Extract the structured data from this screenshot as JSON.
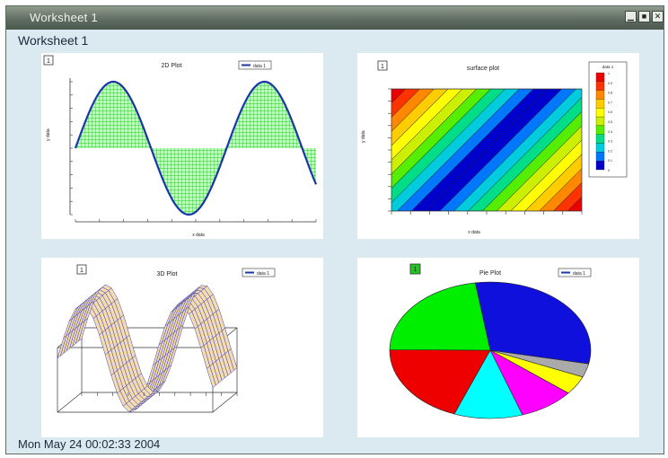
{
  "window": {
    "title": "Worksheet 1",
    "controls": {
      "minimize_icon": "minimize-icon",
      "maximize_icon": "maximize-icon",
      "close_icon": "close-icon"
    }
  },
  "worksheet": {
    "heading": "Worksheet 1",
    "timestamp": "Mon May 24 00:02:33 2004"
  },
  "charts": [
    {
      "index_label": "1",
      "title": "2D Plot",
      "legend": "data 1",
      "ylabel": "y data",
      "xlabel": "x data"
    },
    {
      "index_label": "1",
      "title": "surface plot",
      "legend_title": "data 1",
      "ylabel": "y data",
      "xlabel": "x data"
    },
    {
      "index_label": "1",
      "title": "3D Plot",
      "legend": "data 1"
    },
    {
      "index_label": "1",
      "title": "Pie Plot",
      "legend": "data 1"
    }
  ],
  "chart_data": [
    {
      "type": "line",
      "title": "2D Plot",
      "legend": [
        "data 1"
      ],
      "description_fill": "hatched green fill between curve and baseline 0.5",
      "series": [
        {
          "name": "data 1",
          "function": "0.5+0.5*sin(x)",
          "x": [
            0,
            0.5,
            1,
            1.5,
            2,
            2.5,
            3,
            3.5,
            4,
            4.5,
            5,
            5.5,
            6,
            6.5,
            7,
            7.5,
            8,
            8.5,
            9,
            9.5,
            10
          ],
          "values": [
            0.5,
            0.74,
            0.92,
            1.0,
            0.95,
            0.8,
            0.57,
            0.32,
            0.12,
            0.01,
            0.02,
            0.14,
            0.36,
            0.61,
            0.83,
            0.97,
            0.99,
            0.9,
            0.71,
            0.47,
            0.23
          ]
        }
      ],
      "xlim": [
        0,
        10
      ],
      "ylim": [
        0,
        1
      ],
      "grid": false
    },
    {
      "type": "heatmap",
      "title": "surface plot",
      "legend_title": "data 1",
      "colorscale": [
        "#0000cc",
        "#0077ff",
        "#00ccdd",
        "#00dd88",
        "#55ee00",
        "#ccee00",
        "#ffff00",
        "#ffcc00",
        "#ff8800",
        "#ff3300",
        "#ee0000"
      ],
      "colorbar_levels": [
        "1",
        "0.9",
        "0.8",
        "0.7",
        "0.6",
        "0.5",
        "0.4",
        "0.3",
        "0.2",
        "0.1",
        "0"
      ],
      "xlim": [
        0,
        10
      ],
      "ylim": [
        0,
        10
      ]
    },
    {
      "type": "line",
      "title": "3D Plot",
      "legend": [
        "data 1"
      ],
      "description": "wireframe surface z=0.5+0.5*sin(x) plotted in a 3D box"
    },
    {
      "type": "pie",
      "title": "Pie Plot",
      "legend": [
        "data 1"
      ],
      "slices": [
        {
          "label": "",
          "value": 30.6,
          "color": "#1010dd"
        },
        {
          "label": "",
          "value": 3.2,
          "color": "#aaaaaa"
        },
        {
          "label": "",
          "value": 4.4,
          "color": "#ffff00"
        },
        {
          "label": "",
          "value": 9.0,
          "color": "#ff00ff"
        },
        {
          "label": "",
          "value": 11.0,
          "color": "#00ffff"
        },
        {
          "label": "",
          "value": 19.3,
          "color": "#ee0000"
        },
        {
          "label": "",
          "value": 22.5,
          "color": "#00ee00"
        }
      ]
    }
  ]
}
